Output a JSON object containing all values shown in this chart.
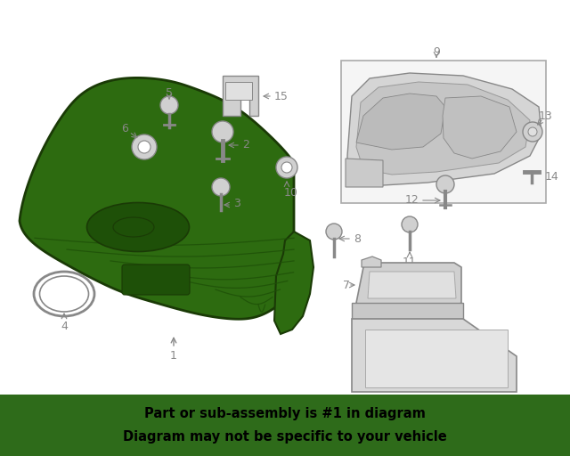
{
  "bg_color": "#ffffff",
  "banner_color": "#2e6b1a",
  "banner_text_line1": "Part or sub-assembly is #1 in diagram",
  "banner_text_line2": "Diagram may not be specific to your vehicle",
  "banner_text_color": "#000000",
  "grille_fill": "#2d6b10",
  "grille_outline": "#1a3a06",
  "grille_dark": "#1e5008",
  "parts_color": "#d0d0d0",
  "parts_outline": "#888888",
  "label_color": "#888888",
  "arrow_color": "#888888",
  "box_outline": "#aaaaaa",
  "font_size_label": 9,
  "font_size_banner": 10.5,
  "title_color": "#333333"
}
